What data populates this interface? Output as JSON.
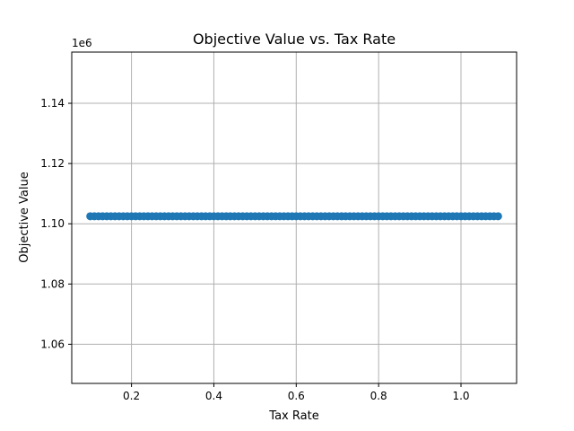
{
  "chart_data": {
    "type": "scatter",
    "title": "Objective Value vs. Tax Rate",
    "xlabel": "Tax Rate",
    "ylabel": "Objective Value",
    "y_offset_label": "1e6",
    "xlim": [
      0.055,
      1.135
    ],
    "ylim": [
      1047000,
      1157000
    ],
    "x_ticks": [
      0.2,
      0.4,
      0.6,
      0.8,
      1.0
    ],
    "x_tick_labels": [
      "0.2",
      "0.4",
      "0.6",
      "0.8",
      "1.0"
    ],
    "y_ticks": [
      1060000,
      1080000,
      1100000,
      1120000,
      1140000
    ],
    "y_tick_labels": [
      "1.06",
      "1.08",
      "1.10",
      "1.12",
      "1.14"
    ],
    "grid": true,
    "marker_color": "#1f77b4",
    "series": [
      {
        "x": [
          0.1,
          0.11,
          0.12,
          0.13,
          0.14,
          0.15,
          0.16,
          0.17,
          0.18,
          0.19,
          0.2,
          0.21,
          0.22,
          0.23,
          0.24,
          0.25,
          0.26,
          0.27,
          0.28,
          0.29,
          0.3,
          0.31,
          0.32,
          0.33,
          0.34,
          0.35,
          0.36,
          0.37,
          0.38,
          0.39,
          0.4,
          0.41,
          0.42,
          0.43,
          0.44,
          0.45,
          0.46,
          0.47,
          0.48,
          0.49,
          0.5,
          0.51,
          0.52,
          0.53,
          0.54,
          0.55,
          0.56,
          0.57,
          0.58,
          0.59,
          0.6,
          0.61,
          0.62,
          0.63,
          0.64,
          0.65,
          0.66,
          0.67,
          0.68,
          0.69,
          0.7,
          0.71,
          0.72,
          0.73,
          0.74,
          0.75,
          0.76,
          0.77,
          0.78,
          0.79,
          0.8,
          0.81,
          0.82,
          0.83,
          0.84,
          0.85,
          0.86,
          0.87,
          0.88,
          0.89,
          0.9,
          0.91,
          0.92,
          0.93,
          0.94,
          0.95,
          0.96,
          0.97,
          0.98,
          0.99,
          1.0,
          1.01,
          1.02,
          1.03,
          1.04,
          1.05,
          1.06,
          1.07,
          1.08,
          1.09
        ],
        "y_constant": 1102500
      }
    ]
  }
}
